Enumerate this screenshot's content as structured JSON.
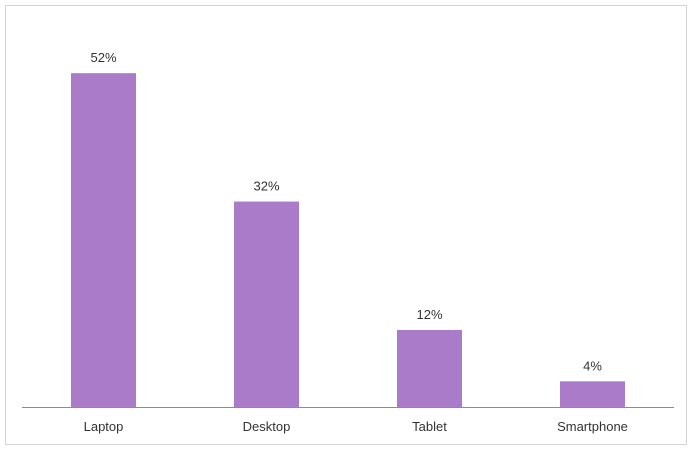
{
  "chart_data": {
    "type": "bar",
    "categories": [
      "Laptop",
      "Desktop",
      "Tablet",
      "Smartphone"
    ],
    "values": [
      52,
      32,
      12,
      4
    ],
    "value_labels": [
      "52%",
      "32%",
      "12%",
      "4%"
    ],
    "ylim": [
      0,
      60
    ],
    "grid": false,
    "legend": "none",
    "bar_color": "#a97bc9"
  }
}
